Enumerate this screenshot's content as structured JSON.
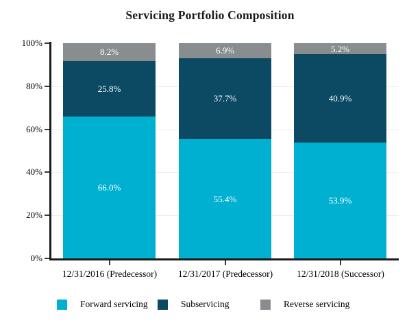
{
  "title": "Servicing Portfolio Composition",
  "chart_data": {
    "type": "bar",
    "stacked": true,
    "title": "Servicing Portfolio Composition",
    "categories": [
      "12/31/2016 (Predecessor)",
      "12/31/2017 (Predecessor)",
      "12/31/2018 (Successor)"
    ],
    "series": [
      {
        "name": "Forward servicing",
        "color": "#00B0D0",
        "values": [
          66.0,
          55.4,
          53.9
        ]
      },
      {
        "name": "Subservicing",
        "color": "#0C4A64",
        "values": [
          25.8,
          37.7,
          40.9
        ]
      },
      {
        "name": "Reverse servicing",
        "color": "#8A8D90",
        "values": [
          8.2,
          6.9,
          5.2
        ]
      }
    ],
    "value_labels": [
      [
        "66.0%",
        "25.8%",
        "8.2%"
      ],
      [
        "55.4%",
        "37.7%",
        "6.9%"
      ],
      [
        "53.9%",
        "40.9%",
        "5.2%"
      ]
    ],
    "xlabel": "",
    "ylabel": "",
    "ylim": [
      0,
      100
    ],
    "ytick_step": 20,
    "yticks": [
      "0%",
      "20%",
      "40%",
      "60%",
      "80%",
      "100%"
    ],
    "grid": true,
    "legend_position": "bottom"
  },
  "colors": {
    "axis": "#1A1A1A",
    "tick": "#3A3A3A",
    "gridline": "#EDEDED",
    "text": "#000000",
    "bar_value_label": "#FFFFFF",
    "background": "#FFFFFF"
  }
}
